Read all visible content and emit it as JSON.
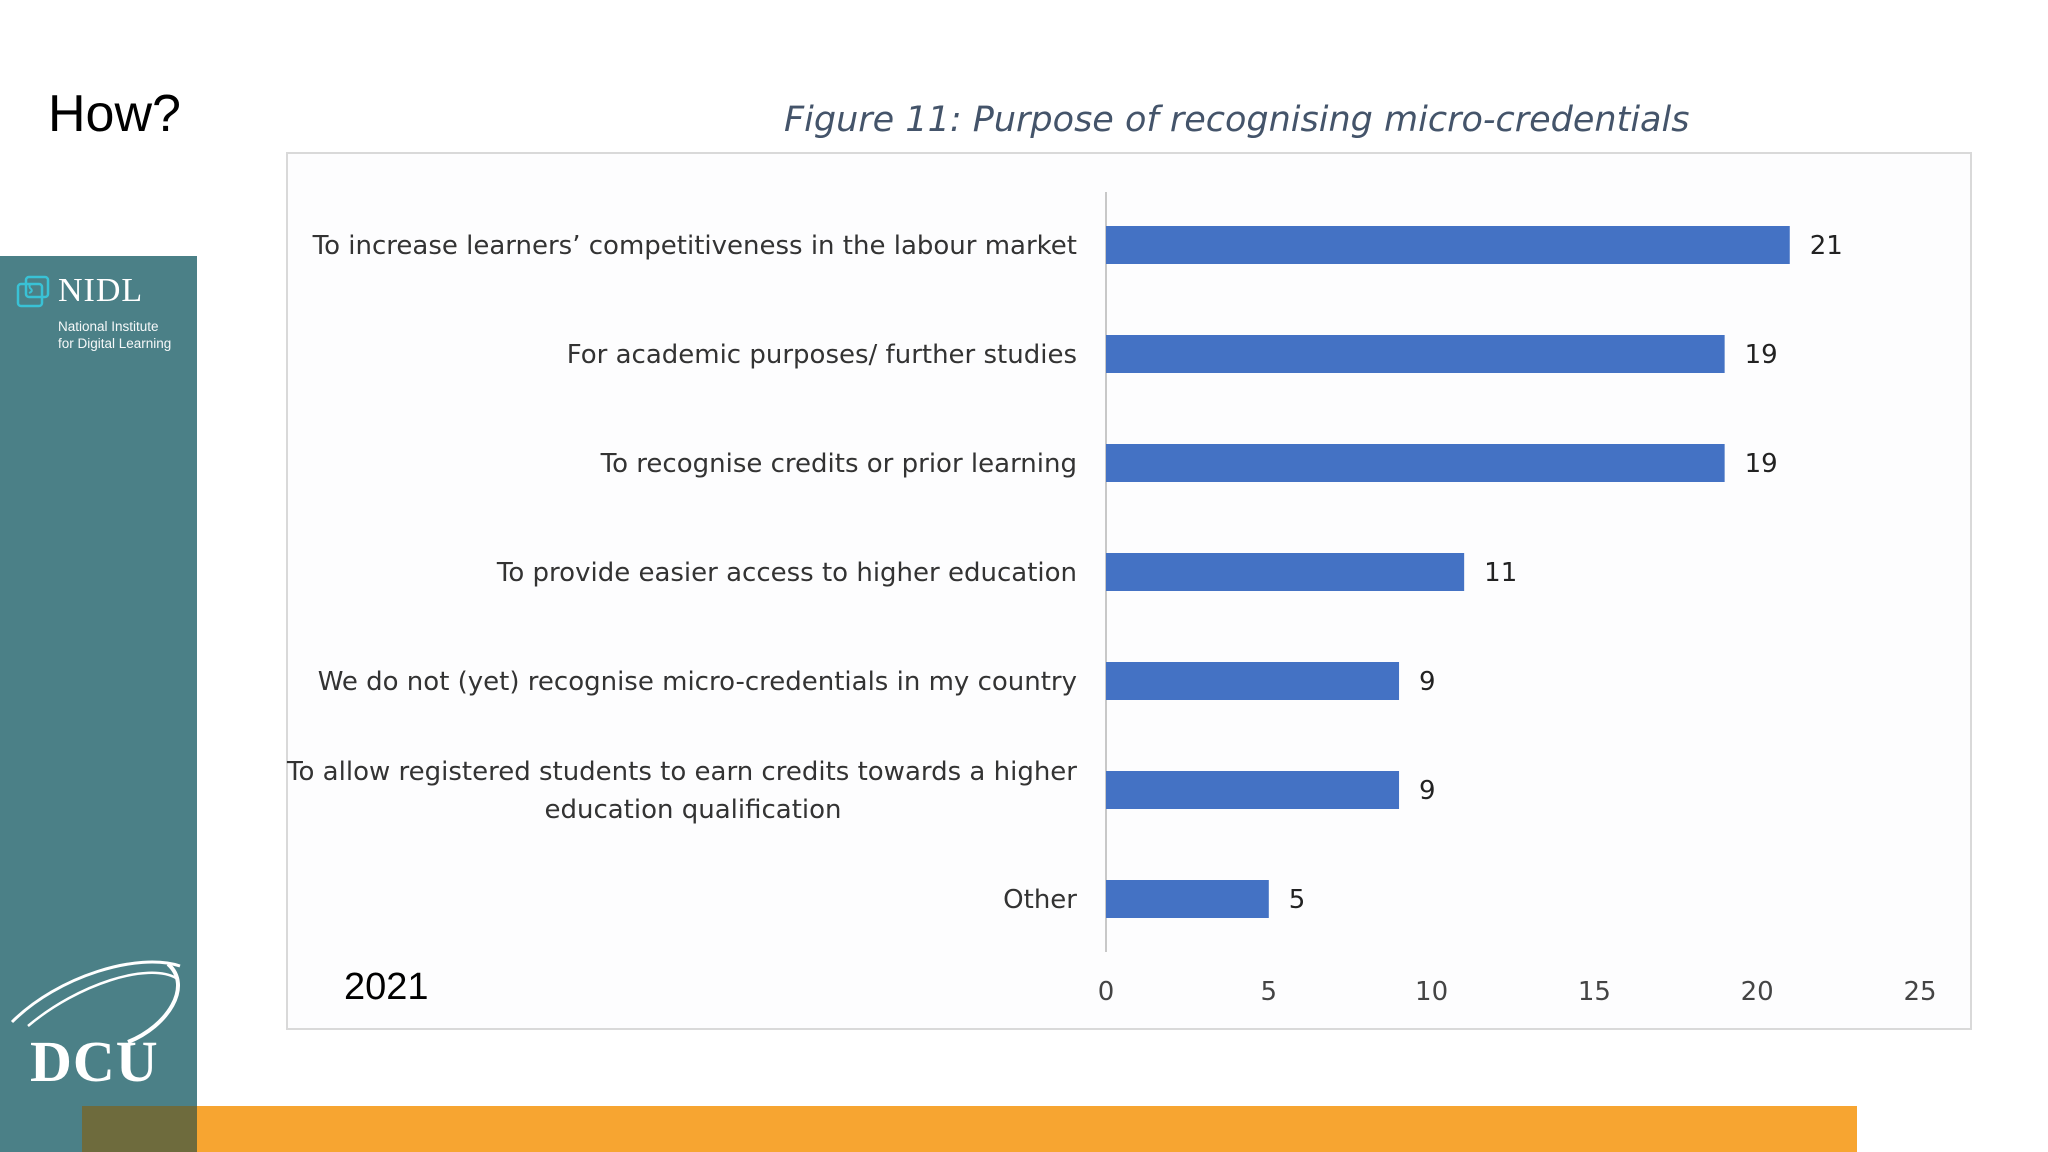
{
  "slide": {
    "title": "How?",
    "year": "2021"
  },
  "branding": {
    "nidl_name": "NIDL",
    "nidl_sub_line1": "National Institute",
    "nidl_sub_line2": "for Digital Learning",
    "dcu": "DCU",
    "sidebar_color": "#4b8087",
    "bar_accent_color": "#f7a531"
  },
  "chart_data": {
    "type": "bar",
    "orientation": "horizontal",
    "title": "Figure 11: Purpose of recognising micro-credentials",
    "categories": [
      [
        "To increase learners’ competitiveness in the labour market"
      ],
      [
        "For academic purposes/ further studies"
      ],
      [
        "To recognise credits or prior learning"
      ],
      [
        "To provide easier access to higher education"
      ],
      [
        "We do not (yet) recognise micro-credentials in my country"
      ],
      [
        "To allow registered students to earn credits towards a higher",
        "education qualification"
      ],
      [
        "Other"
      ]
    ],
    "values": [
      21,
      19,
      19,
      11,
      9,
      9,
      5
    ],
    "xlim": [
      0,
      25
    ],
    "xticks": [
      0,
      5,
      10,
      15,
      20,
      25
    ],
    "xlabel": "",
    "ylabel": "",
    "bar_color": "#4472c4",
    "grid": false,
    "legend": "none"
  }
}
